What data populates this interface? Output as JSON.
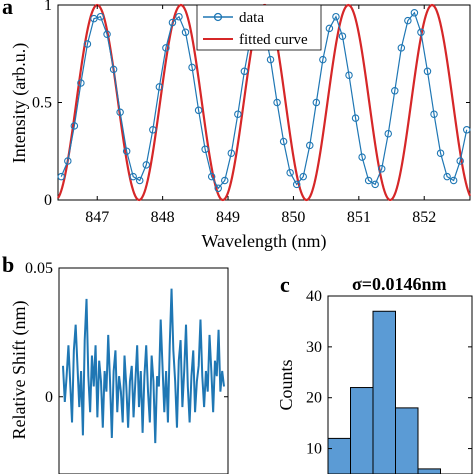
{
  "chart_data": [
    {
      "panel": "a",
      "type": "line",
      "xlabel": "Wavelength (nm)",
      "ylabel": "Intensity (arb.u.)",
      "xlim": [
        846.4,
        852.7
      ],
      "ylim": [
        0,
        1
      ],
      "xticks": [
        847,
        848,
        849,
        850,
        851,
        852
      ],
      "yticks": [
        0,
        0.5,
        1
      ],
      "ytick_labels": [
        "0",
        "0.5",
        "1"
      ],
      "legend": {
        "placement": "top-right",
        "entries": [
          "data",
          "fitted curve"
        ]
      },
      "series": [
        {
          "name": "data",
          "style": "circle-markers-with-line",
          "color": "#1f77b4",
          "x": [
            846.45,
            846.55,
            846.65,
            846.75,
            846.85,
            846.95,
            847.05,
            847.15,
            847.25,
            847.35,
            847.45,
            847.55,
            847.65,
            847.75,
            847.85,
            847.95,
            848.05,
            848.15,
            848.25,
            848.35,
            848.45,
            848.55,
            848.65,
            848.75,
            848.85,
            848.95,
            849.05,
            849.15,
            849.25,
            849.35,
            849.45,
            849.55,
            849.65,
            849.75,
            849.85,
            849.95,
            850.05,
            850.15,
            850.25,
            850.35,
            850.45,
            850.55,
            850.65,
            850.75,
            850.85,
            850.95,
            851.05,
            851.15,
            851.25,
            851.35,
            851.45,
            851.55,
            851.65,
            851.75,
            851.85,
            851.95,
            852.05,
            852.15,
            852.25,
            852.35,
            852.45,
            852.55,
            852.65
          ],
          "y": [
            0.12,
            0.2,
            0.38,
            0.6,
            0.8,
            0.93,
            0.94,
            0.85,
            0.67,
            0.45,
            0.25,
            0.12,
            0.1,
            0.18,
            0.36,
            0.58,
            0.78,
            0.91,
            0.94,
            0.86,
            0.68,
            0.46,
            0.26,
            0.12,
            0.06,
            0.1,
            0.24,
            0.44,
            0.66,
            0.84,
            0.92,
            0.88,
            0.72,
            0.5,
            0.3,
            0.14,
            0.08,
            0.12,
            0.28,
            0.5,
            0.72,
            0.88,
            0.94,
            0.84,
            0.64,
            0.42,
            0.22,
            0.1,
            0.08,
            0.16,
            0.34,
            0.56,
            0.78,
            0.92,
            0.96,
            0.86,
            0.66,
            0.44,
            0.24,
            0.12,
            0.1,
            0.2,
            0.36
          ]
        },
        {
          "name": "fitted curve",
          "style": "line",
          "color": "#d62728",
          "model": {
            "center": 850.2,
            "period": 1.28,
            "amplitude": 1
          }
        }
      ]
    },
    {
      "panel": "b",
      "type": "line",
      "xlabel": "",
      "ylabel": "Relative Shift (nm)",
      "ylim": [
        -0.03,
        0.05
      ],
      "yticks": [
        0,
        0.05
      ],
      "ytick_labels": [
        "0",
        "0.05"
      ],
      "series": [
        {
          "color": "#1f77b4",
          "values": [
            0.012,
            -0.002,
            0.008,
            0.02,
            0.005,
            -0.01,
            0.018,
            0.028,
            0.012,
            -0.004,
            0.01,
            -0.015,
            0.022,
            0.038,
            0.008,
            -0.006,
            0.016,
            0.004,
            0.02,
            -0.008,
            0.014,
            0.006,
            -0.012,
            0.01,
            0.002,
            0.024,
            0.006,
            -0.016,
            0.01,
            0.018,
            -0.006,
            0.008,
            0.002,
            -0.01,
            0.016,
            0.004,
            -0.012,
            0.006,
            0.012,
            -0.008,
            0.006,
            0.02,
            -0.004,
            0.01,
            -0.014,
            0.008,
            0.02,
            0.002,
            -0.01,
            0.016,
            0.006,
            -0.018,
            0.008,
            0.004,
            0.03,
            0.012,
            -0.006,
            0.01,
            -0.01,
            0.02,
            0.042,
            0.018,
            0.006,
            -0.012,
            0.014,
            0.022,
            -0.004,
            0.01,
            0.028,
            0.004,
            -0.01,
            0.008,
            0.018,
            -0.006,
            0.006,
            0.012,
            0.03,
            0.008,
            -0.004,
            0.01,
            0.002,
            0.024,
            0.01,
            -0.006,
            0.014,
            0.008,
            0.026,
            0.002,
            0.01,
            0.004
          ]
        }
      ]
    },
    {
      "panel": "c",
      "type": "bar",
      "title": "σ=0.0146nm",
      "xlabel": "",
      "ylabel": "Counts",
      "ylim": [
        5,
        40
      ],
      "yticks": [
        10,
        20,
        30,
        40
      ],
      "ytick_labels": [
        "10",
        "20",
        "30",
        "40"
      ],
      "color": "#5b9bd5",
      "values": [
        12,
        22,
        37,
        18,
        6
      ]
    }
  ],
  "labels": {
    "panel_a": "a",
    "panel_b": "b",
    "panel_c": "c"
  }
}
